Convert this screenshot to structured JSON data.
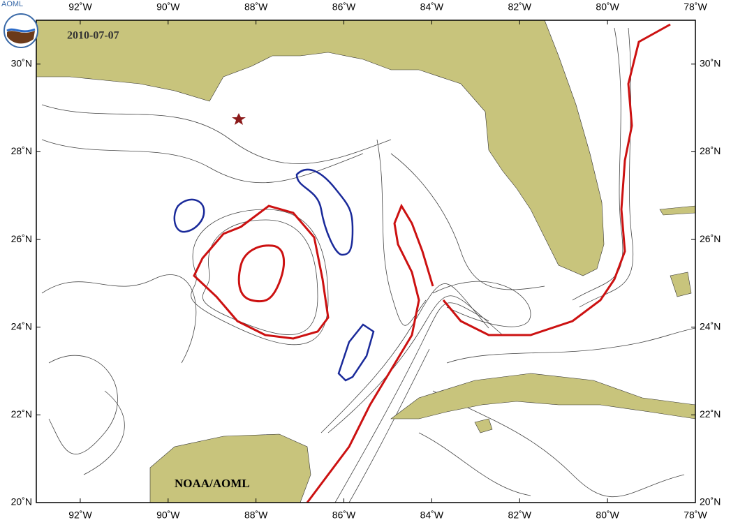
{
  "map": {
    "logo_text": "AOML",
    "date": "2010-07-07",
    "credit": "NOAA/AOML",
    "xlim": [
      -93,
      -78
    ],
    "ylim": [
      20,
      31
    ],
    "xticks": [
      {
        "value": -92,
        "label": "92˚W"
      },
      {
        "value": -90,
        "label": "90˚W"
      },
      {
        "value": -88,
        "label": "88˚W"
      },
      {
        "value": -86,
        "label": "86˚W"
      },
      {
        "value": -84,
        "label": "84˚W"
      },
      {
        "value": -82,
        "label": "82˚W"
      },
      {
        "value": -80,
        "label": "80˚W"
      },
      {
        "value": -78,
        "label": "78˚W"
      }
    ],
    "yticks": [
      {
        "value": 20,
        "label": "20˚N"
      },
      {
        "value": 22,
        "label": "22˚N"
      },
      {
        "value": 24,
        "label": "24˚N"
      },
      {
        "value": 26,
        "label": "26˚N"
      },
      {
        "value": 28,
        "label": "28˚N"
      },
      {
        "value": 30,
        "label": "30˚N"
      }
    ]
  }
}
